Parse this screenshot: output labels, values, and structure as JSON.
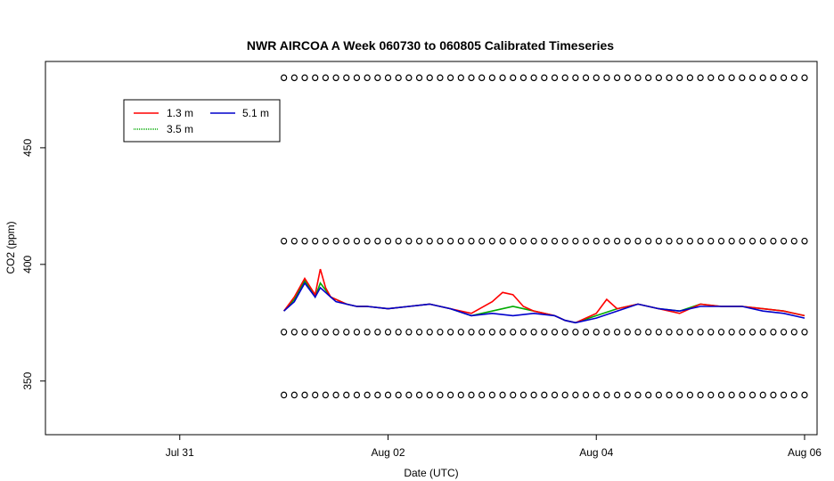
{
  "chart_data": {
    "type": "line",
    "title": "NWR AIRCOA A  Week 060730 to 060805  Calibrated Timeseries",
    "xlabel": "Date (UTC)",
    "ylabel": "CO2 (ppm)",
    "x_tick_labels": [
      "Jul 31",
      "Aug 02",
      "Aug 04",
      "Aug 06"
    ],
    "x_tick_days": [
      0,
      2,
      4,
      6
    ],
    "x_unit": "days since Jul 31 00:00 UTC",
    "xlim": [
      -1.29,
      6.12
    ],
    "y_ticks": [
      350,
      400,
      450
    ],
    "ylim": [
      327,
      487
    ],
    "legend": {
      "position": "top-left",
      "entries": [
        {
          "label": "1.3 m",
          "color": "#ff0000"
        },
        {
          "label": "3.5 m",
          "color": "#00aa00"
        },
        {
          "label": "5.1 m",
          "color": "#0000cc"
        }
      ]
    },
    "series": [
      {
        "name": "5.1 m",
        "color": "#0000cc",
        "x": [
          1.0,
          1.1,
          1.2,
          1.3,
          1.35,
          1.4,
          1.45,
          1.5,
          1.6,
          1.7,
          1.8,
          2.0,
          2.2,
          2.4,
          2.6,
          2.8,
          3.0,
          3.2,
          3.4,
          3.6,
          3.7,
          3.8,
          4.0,
          4.2,
          4.4,
          4.6,
          4.8,
          5.0,
          5.2,
          5.4,
          5.6,
          5.8,
          6.0
        ],
        "values": [
          380,
          384,
          392,
          386,
          390,
          388,
          386,
          384,
          383,
          382,
          382,
          381,
          382,
          383,
          381,
          378,
          379,
          378,
          379,
          378,
          376,
          375,
          377,
          380,
          383,
          381,
          380,
          382,
          382,
          382,
          380,
          379,
          377
        ]
      },
      {
        "name": "3.5 m",
        "color": "#00aa00",
        "x": [
          1.0,
          1.1,
          1.2,
          1.3,
          1.35,
          1.4,
          1.45,
          1.5,
          1.6,
          1.7,
          1.8,
          2.0,
          2.2,
          2.4,
          2.6,
          2.8,
          3.0,
          3.2,
          3.4,
          3.6,
          3.7,
          3.8,
          4.0,
          4.2,
          4.4,
          4.6,
          4.8,
          5.0,
          5.2,
          5.4,
          5.6,
          5.8,
          6.0
        ],
        "values": [
          380,
          385,
          393,
          386,
          392,
          389,
          386,
          385,
          383,
          382,
          382,
          381,
          382,
          383,
          381,
          378,
          380,
          382,
          380,
          378,
          376,
          375,
          378,
          381,
          383,
          381,
          380,
          383,
          382,
          382,
          381,
          380,
          378
        ]
      },
      {
        "name": "1.3 m",
        "color": "#ff0000",
        "x": [
          1.0,
          1.1,
          1.2,
          1.3,
          1.35,
          1.4,
          1.45,
          1.5,
          1.6,
          1.7,
          1.8,
          2.0,
          2.2,
          2.4,
          2.6,
          2.8,
          3.0,
          3.1,
          3.2,
          3.3,
          3.4,
          3.6,
          3.7,
          3.8,
          4.0,
          4.1,
          4.2,
          4.4,
          4.6,
          4.8,
          5.0,
          5.2,
          5.4,
          5.6,
          5.8,
          6.0
        ],
        "values": [
          380,
          386,
          394,
          387,
          398,
          390,
          386,
          385,
          383,
          382,
          382,
          381,
          382,
          383,
          381,
          379,
          384,
          388,
          387,
          382,
          380,
          378,
          376,
          375,
          379,
          385,
          381,
          383,
          381,
          379,
          383,
          382,
          382,
          381,
          380,
          378
        ]
      },
      {
        "name": "",
        "color": "#000000",
        "markers": "circle",
        "x": [
          1.0,
          1.1,
          1.2,
          1.3,
          1.4,
          1.5,
          1.6,
          1.7,
          1.8,
          1.9,
          2.0,
          2.1,
          2.2,
          2.3,
          2.4,
          2.5,
          2.6,
          2.7,
          2.8,
          2.9,
          3.0,
          3.1,
          3.2,
          3.3,
          3.4,
          3.5,
          3.6,
          3.7,
          3.8,
          3.9,
          4.0,
          4.1,
          4.2,
          4.3,
          4.4,
          4.5,
          4.6,
          4.7,
          4.8,
          4.9,
          5.0,
          5.1,
          5.2,
          5.3,
          5.4,
          5.5,
          5.6,
          5.7,
          5.8,
          5.9,
          6.0
        ],
        "values": [
          344,
          344,
          344,
          344,
          344,
          344,
          344,
          344,
          344,
          344,
          344,
          344,
          344,
          344,
          344,
          344,
          344,
          344,
          344,
          344,
          344,
          344,
          344,
          344,
          344,
          344,
          344,
          344,
          344,
          344,
          344,
          344,
          344,
          344,
          344,
          344,
          344,
          344,
          344,
          344,
          344,
          344,
          344,
          344,
          344,
          344,
          344,
          344,
          344,
          344,
          344
        ]
      },
      {
        "name": "",
        "color": "#000000",
        "markers": "circle",
        "x": [
          1.0,
          1.1,
          1.2,
          1.3,
          1.4,
          1.5,
          1.6,
          1.7,
          1.8,
          1.9,
          2.0,
          2.1,
          2.2,
          2.3,
          2.4,
          2.5,
          2.6,
          2.7,
          2.8,
          2.9,
          3.0,
          3.1,
          3.2,
          3.3,
          3.4,
          3.5,
          3.6,
          3.7,
          3.8,
          3.9,
          4.0,
          4.1,
          4.2,
          4.3,
          4.4,
          4.5,
          4.6,
          4.7,
          4.8,
          4.9,
          5.0,
          5.1,
          5.2,
          5.3,
          5.4,
          5.5,
          5.6,
          5.7,
          5.8,
          5.9,
          6.0
        ],
        "values": [
          371,
          371,
          371,
          371,
          371,
          371,
          371,
          371,
          371,
          371,
          371,
          371,
          371,
          371,
          371,
          371,
          371,
          371,
          371,
          371,
          371,
          371,
          371,
          371,
          371,
          371,
          371,
          371,
          371,
          371,
          371,
          371,
          371,
          371,
          371,
          371,
          371,
          371,
          371,
          371,
          371,
          371,
          371,
          371,
          371,
          371,
          371,
          371,
          371,
          371,
          371
        ]
      },
      {
        "name": "",
        "color": "#000000",
        "markers": "circle",
        "x": [
          1.0,
          1.1,
          1.2,
          1.3,
          1.4,
          1.5,
          1.6,
          1.7,
          1.8,
          1.9,
          2.0,
          2.1,
          2.2,
          2.3,
          2.4,
          2.5,
          2.6,
          2.7,
          2.8,
          2.9,
          3.0,
          3.1,
          3.2,
          3.3,
          3.4,
          3.5,
          3.6,
          3.7,
          3.8,
          3.9,
          4.0,
          4.1,
          4.2,
          4.3,
          4.4,
          4.5,
          4.6,
          4.7,
          4.8,
          4.9,
          5.0,
          5.1,
          5.2,
          5.3,
          5.4,
          5.5,
          5.6,
          5.7,
          5.8,
          5.9,
          6.0
        ],
        "values": [
          410,
          410,
          410,
          410,
          410,
          410,
          410,
          410,
          410,
          410,
          410,
          410,
          410,
          410,
          410,
          410,
          410,
          410,
          410,
          410,
          410,
          410,
          410,
          410,
          410,
          410,
          410,
          410,
          410,
          410,
          410,
          410,
          410,
          410,
          410,
          410,
          410,
          410,
          410,
          410,
          410,
          410,
          410,
          410,
          410,
          410,
          410,
          410,
          410,
          410,
          410
        ]
      },
      {
        "name": "",
        "color": "#000000",
        "markers": "circle",
        "x": [
          1.0,
          1.1,
          1.2,
          1.3,
          1.4,
          1.5,
          1.6,
          1.7,
          1.8,
          1.9,
          2.0,
          2.1,
          2.2,
          2.3,
          2.4,
          2.5,
          2.6,
          2.7,
          2.8,
          2.9,
          3.0,
          3.1,
          3.2,
          3.3,
          3.4,
          3.5,
          3.6,
          3.7,
          3.8,
          3.9,
          4.0,
          4.1,
          4.2,
          4.3,
          4.4,
          4.5,
          4.6,
          4.7,
          4.8,
          4.9,
          5.0,
          5.1,
          5.2,
          5.3,
          5.4,
          5.5,
          5.6,
          5.7,
          5.8,
          5.9,
          6.0
        ],
        "values": [
          480,
          480,
          480,
          480,
          480,
          480,
          480,
          480,
          480,
          480,
          480,
          480,
          480,
          480,
          480,
          480,
          480,
          480,
          480,
          480,
          480,
          480,
          480,
          480,
          480,
          480,
          480,
          480,
          480,
          480,
          480,
          480,
          480,
          480,
          480,
          480,
          480,
          480,
          480,
          480,
          480,
          480,
          480,
          480,
          480,
          480,
          480,
          480,
          480,
          480,
          480
        ]
      }
    ]
  }
}
